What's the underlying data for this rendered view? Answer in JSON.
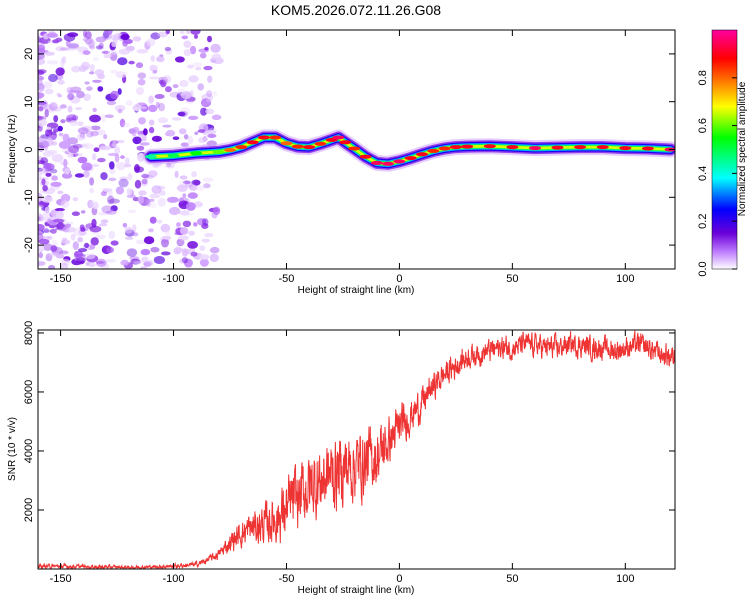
{
  "title": "KOM5.2026.072.11.26.G08",
  "chart_data": [
    {
      "type": "heatmap",
      "name": "spectrogram",
      "xlabel": "Height of straight line (km)",
      "ylabel": "Frequency (Hz)",
      "xlim": [
        -160,
        122
      ],
      "ylim": [
        -25,
        25
      ],
      "xticks": [
        -150,
        -100,
        -50,
        0,
        50,
        100
      ],
      "yticks": [
        -20,
        -10,
        0,
        10,
        20
      ],
      "colorbar": {
        "label": "Normalized spectral amplitude",
        "range": [
          0,
          1
        ],
        "ticks": [
          0.0,
          0.2,
          0.4,
          0.6,
          0.8
        ],
        "tick_labels": [
          "0.0",
          "0.2",
          "0.4",
          "0.6",
          "0.8"
        ],
        "colors": [
          "#ffffff",
          "#c080ff",
          "#6a00d8",
          "#0000ff",
          "#00ffff",
          "#00ff00",
          "#ffff00",
          "#ff7f00",
          "#ff0000",
          "#ff00a0"
        ]
      },
      "noise_region_km": [
        -160,
        -80
      ],
      "frequency_track": {
        "x": [
          -110,
          -100,
          -90,
          -80,
          -75,
          -70,
          -65,
          -60,
          -55,
          -50,
          -45,
          -40,
          -35,
          -30,
          -27,
          -24,
          -20,
          -15,
          -10,
          -5,
          0,
          5,
          10,
          15,
          20,
          25,
          30,
          40,
          50,
          60,
          70,
          80,
          90,
          100,
          110,
          120
        ],
        "y": [
          -1.5,
          -1.3,
          -0.8,
          -0.5,
          -0.1,
          0.5,
          1.5,
          2.5,
          2.5,
          1.3,
          0.6,
          0.5,
          1.2,
          2.0,
          2.5,
          1.5,
          0.2,
          -1.5,
          -2.8,
          -3.0,
          -2.5,
          -1.8,
          -1.0,
          -0.3,
          0.2,
          0.5,
          0.6,
          0.7,
          0.5,
          0.3,
          0.4,
          0.5,
          0.5,
          0.3,
          0.2,
          0.0
        ],
        "amplitude": [
          0.45,
          0.5,
          0.55,
          0.6,
          0.8,
          0.85,
          0.9,
          0.9,
          0.85,
          0.8,
          0.85,
          0.9,
          0.85,
          0.9,
          0.95,
          0.9,
          0.85,
          0.9,
          0.95,
          0.95,
          0.95,
          0.9,
          0.9,
          0.85,
          0.85,
          0.9,
          0.9,
          0.9,
          0.9,
          0.95,
          0.9,
          0.9,
          0.9,
          0.9,
          0.9,
          0.95
        ]
      }
    },
    {
      "type": "line",
      "name": "snr",
      "xlabel": "Height of straight line (km)",
      "ylabel": "SNR (10 * v/v)",
      "xlim": [
        -160,
        122
      ],
      "ylim": [
        0,
        8100
      ],
      "xticks": [
        -150,
        -100,
        -50,
        0,
        50,
        100
      ],
      "yticks": [
        2000,
        4000,
        6000,
        8000
      ],
      "color": "#ee3333",
      "series": [
        {
          "name": "SNR",
          "x": [
            -160,
            -150,
            -140,
            -130,
            -120,
            -110,
            -100,
            -90,
            -85,
            -80,
            -75,
            -70,
            -65,
            -60,
            -55,
            -50,
            -45,
            -40,
            -35,
            -30,
            -25,
            -20,
            -15,
            -10,
            -5,
            0,
            5,
            10,
            15,
            20,
            25,
            30,
            35,
            40,
            45,
            50,
            55,
            60,
            65,
            70,
            75,
            80,
            85,
            90,
            95,
            100,
            105,
            110,
            115,
            120
          ],
          "values": [
            100,
            90,
            80,
            70,
            60,
            70,
            100,
            150,
            300,
            500,
            900,
            1200,
            1400,
            1500,
            1700,
            2000,
            2400,
            2800,
            3000,
            3200,
            3400,
            3500,
            3600,
            3800,
            4300,
            4800,
            5200,
            5600,
            6200,
            6600,
            6900,
            7200,
            7300,
            7400,
            7500,
            7500,
            7600,
            7600,
            7500,
            7500,
            7600,
            7600,
            7500,
            7500,
            7400,
            7500,
            7600,
            7500,
            7300,
            7200
          ],
          "spread": [
            70,
            60,
            60,
            60,
            50,
            50,
            60,
            80,
            100,
            150,
            300,
            400,
            500,
            600,
            700,
            900,
            1000,
            1000,
            1100,
            1100,
            1100,
            1000,
            1000,
            900,
            700,
            600,
            500,
            500,
            400,
            400,
            400,
            350,
            350,
            350,
            350,
            350,
            350,
            350,
            350,
            350,
            350,
            350,
            350,
            350,
            350,
            350,
            350,
            350,
            350,
            350
          ]
        }
      ]
    }
  ]
}
